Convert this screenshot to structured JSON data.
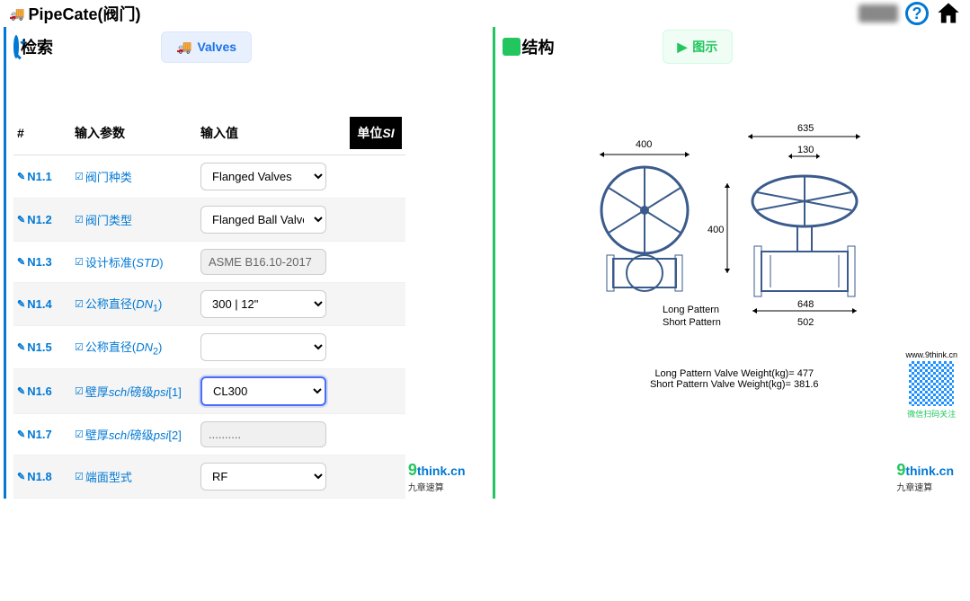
{
  "header": {
    "title": "PipeCate(阀门)"
  },
  "left_panel": {
    "title": "检索",
    "tab_label": "Valves",
    "table_head": {
      "id": "#",
      "name": "输入参数",
      "value": "输入值",
      "unit": "单位SI"
    },
    "rows": [
      {
        "id": "N1.1",
        "name": "阀门种类",
        "value": "Flanged Valves",
        "type": "select"
      },
      {
        "id": "N1.2",
        "name": "阀门类型",
        "value": "Flanged Ball Valve",
        "type": "select"
      },
      {
        "id": "N1.3",
        "name_html": "设计标准(<i>STD</i>)",
        "value": "ASME B16.10-2017",
        "type": "readonly"
      },
      {
        "id": "N1.4",
        "name_html": "公称直径(<i>DN</i><sub>1</sub>)",
        "value": "300 | 12\"",
        "type": "select"
      },
      {
        "id": "N1.5",
        "name_html": "公称直径(<i>DN</i><sub>2</sub>)",
        "value": "",
        "type": "select"
      },
      {
        "id": "N1.6",
        "name_html": "壁厚<i>sch</i>/磅级<i>psi</i>[1]",
        "value": "CL300",
        "type": "select",
        "highlight": true
      },
      {
        "id": "N1.7",
        "name_html": "壁厚<i>sch</i>/磅级<i>psi</i>[2]",
        "value": "..........",
        "type": "readonly"
      },
      {
        "id": "N1.8",
        "name": "端面型式",
        "value": "RF",
        "type": "select"
      }
    ]
  },
  "right_panel": {
    "title": "结构",
    "tab_label": "图示",
    "dims": {
      "top_left": "400",
      "top_right": "635",
      "handle": "130",
      "height": "400",
      "long": "648",
      "short": "502"
    },
    "patterns": {
      "long_label": "Long Pattern",
      "short_label": "Short Pattern"
    },
    "weights": {
      "long": "Long Pattern Valve Weight(kg)= 477",
      "short": "Short Pattern Valve Weight(kg)= 381.6"
    },
    "qr": {
      "url": "www.9think.cn",
      "caption": "微信扫码关注"
    }
  },
  "footer": {
    "brand_nine": "9",
    "brand_think": "think.cn",
    "sub": "九章速算"
  },
  "colors": {
    "primary": "#0078d4",
    "accent": "#22c55e",
    "highlight": "#4a6cf7"
  }
}
